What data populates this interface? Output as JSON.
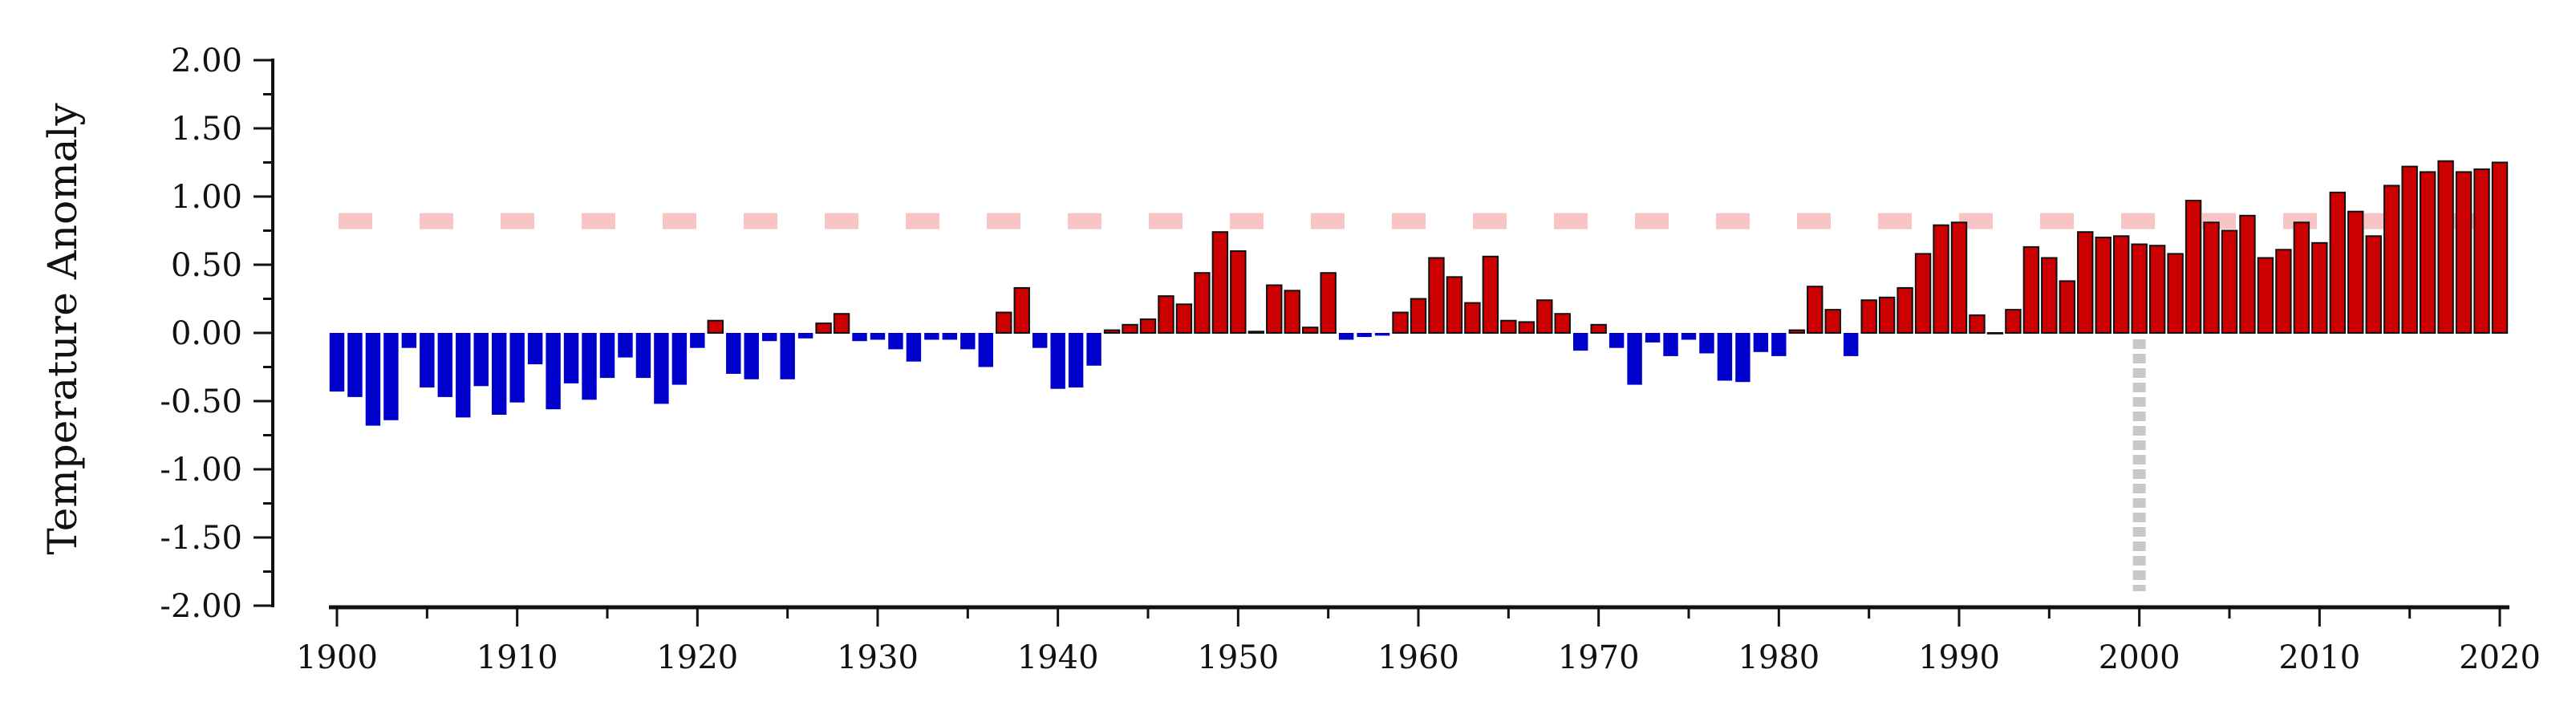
{
  "chart_data": {
    "type": "bar",
    "title": "",
    "xlabel": "",
    "ylabel": "Temperature Anomaly",
    "ylim": [
      -2.0,
      2.0
    ],
    "yticks": [
      "2.00",
      "1.50",
      "1.00",
      "0.50",
      "0.00",
      "-0.50",
      "-1.00",
      "-1.50",
      "-2.00"
    ],
    "xlim": [
      1900,
      2020
    ],
    "xticks": [
      "1900",
      "1910",
      "1920",
      "1930",
      "1940",
      "1950",
      "1960",
      "1970",
      "1980",
      "1990",
      "2000",
      "2010",
      "2020"
    ],
    "grid": false,
    "legend": "none",
    "x": [
      1900,
      1901,
      1902,
      1903,
      1904,
      1905,
      1906,
      1907,
      1908,
      1909,
      1910,
      1911,
      1912,
      1913,
      1914,
      1915,
      1916,
      1917,
      1918,
      1919,
      1920,
      1921,
      1922,
      1923,
      1924,
      1925,
      1926,
      1927,
      1928,
      1929,
      1930,
      1931,
      1932,
      1933,
      1934,
      1935,
      1936,
      1937,
      1938,
      1939,
      1940,
      1941,
      1942,
      1943,
      1944,
      1945,
      1946,
      1947,
      1948,
      1949,
      1950,
      1951,
      1952,
      1953,
      1954,
      1955,
      1956,
      1957,
      1958,
      1959,
      1960,
      1961,
      1962,
      1963,
      1964,
      1965,
      1966,
      1967,
      1968,
      1969,
      1970,
      1971,
      1972,
      1973,
      1974,
      1975,
      1976,
      1977,
      1978,
      1979,
      1980,
      1981,
      1982,
      1983,
      1984,
      1985,
      1986,
      1987,
      1988,
      1989,
      1990,
      1991,
      1992,
      1993,
      1994,
      1995,
      1996,
      1997,
      1998,
      1999,
      2000,
      2001,
      2002,
      2003,
      2004,
      2005,
      2006,
      2007,
      2008,
      2009,
      2010,
      2011,
      2012,
      2013,
      2014,
      2015,
      2016,
      2017,
      2018,
      2019,
      2020
    ],
    "values": [
      -0.43,
      -0.47,
      -0.68,
      -0.64,
      -0.11,
      -0.4,
      -0.47,
      -0.62,
      -0.39,
      -0.6,
      -0.51,
      -0.23,
      -0.56,
      -0.37,
      -0.49,
      -0.33,
      -0.18,
      -0.33,
      -0.52,
      -0.38,
      -0.11,
      0.09,
      -0.3,
      -0.34,
      -0.06,
      -0.34,
      -0.04,
      0.07,
      0.14,
      -0.06,
      -0.05,
      -0.12,
      -0.21,
      -0.05,
      -0.05,
      -0.12,
      -0.25,
      0.15,
      0.33,
      -0.11,
      -0.41,
      -0.4,
      -0.24,
      0.02,
      0.06,
      0.1,
      0.27,
      0.21,
      0.44,
      0.74,
      0.6,
      0.01,
      0.35,
      0.31,
      0.04,
      0.44,
      -0.05,
      -0.03,
      -0.02,
      0.15,
      0.25,
      0.55,
      0.41,
      0.22,
      0.56,
      0.09,
      0.08,
      0.24,
      0.14,
      -0.13,
      0.06,
      -0.11,
      -0.38,
      -0.07,
      -0.17,
      -0.05,
      -0.15,
      -0.35,
      -0.36,
      -0.14,
      -0.17,
      0.02,
      0.34,
      0.17,
      -0.17,
      0.24,
      0.26,
      0.33,
      0.58,
      0.79,
      0.81,
      0.13,
      0.0,
      0.17,
      0.63,
      0.55,
      0.38,
      0.74,
      0.7,
      0.71,
      0.65,
      0.64,
      0.58,
      0.97,
      0.81,
      0.75,
      0.86,
      0.55,
      0.61,
      0.81,
      0.66,
      1.03,
      0.89,
      0.71,
      1.08,
      1.22,
      1.18,
      1.26,
      1.18,
      1.2,
      1.25
    ],
    "colors": {
      "positive": "#cc0000",
      "negative": "#0000cc",
      "bar_stroke": "#111111",
      "axis": "#111111",
      "reference_line": "#f8c4c4",
      "marker_line": "#c8c8c8"
    },
    "reference_line": {
      "y": 0.82,
      "style": "dashed"
    },
    "marker_line": {
      "x": 2000,
      "y_from": 0.0,
      "y_to": -2.0,
      "style": "dotted"
    }
  }
}
